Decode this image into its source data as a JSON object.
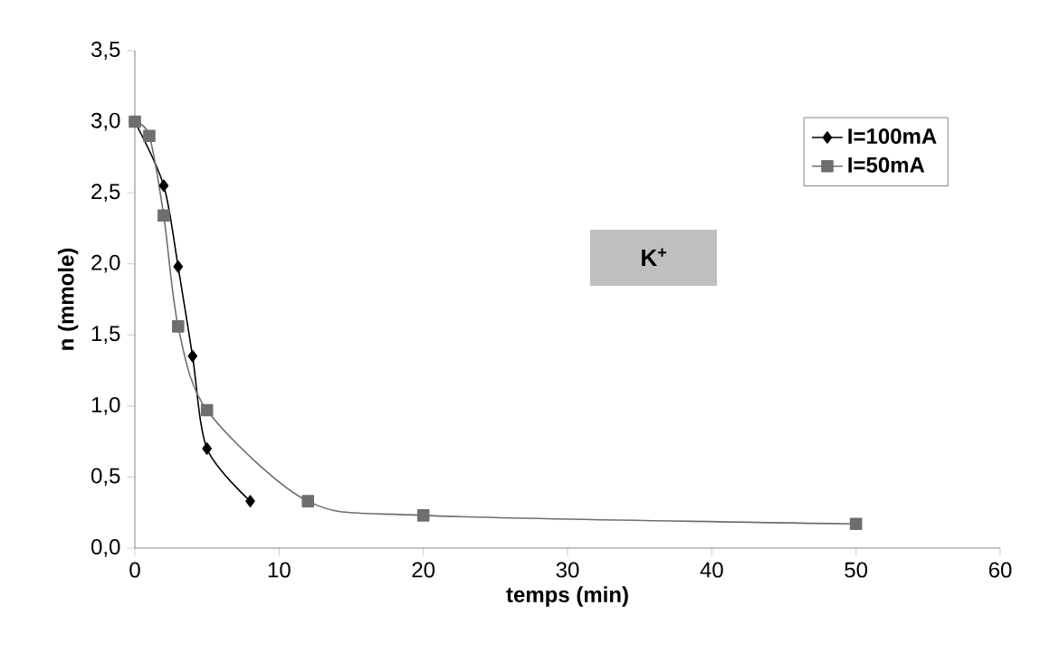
{
  "chart_data": {
    "type": "line",
    "xlabel": "temps (min)",
    "ylabel": "n (mmole)",
    "xlim": [
      0,
      60
    ],
    "xticks": [
      0,
      10,
      20,
      30,
      40,
      50,
      60
    ],
    "ylim": [
      0,
      3.5
    ],
    "yticks": [
      {
        "value": 0,
        "label": "0,0"
      },
      {
        "value": 0.5,
        "label": "0,5"
      },
      {
        "value": 1,
        "label": "1,0"
      },
      {
        "value": 1.5,
        "label": "1,5"
      },
      {
        "value": 2,
        "label": "2,0"
      },
      {
        "value": 2.5,
        "label": "2,5"
      },
      {
        "value": 3,
        "label": "3,0"
      },
      {
        "value": 3.5,
        "label": "3,5"
      }
    ],
    "series": [
      {
        "name": "I=100mA",
        "color": "#000000",
        "marker": "diamond",
        "x": [
          0,
          1,
          2,
          3,
          4,
          5,
          8
        ],
        "values": [
          3.0,
          null,
          2.55,
          1.98,
          1.35,
          0.7,
          0.33
        ]
      },
      {
        "name": "I=50mA",
        "color": "#6e6e6e",
        "marker": "square",
        "x": [
          0,
          1,
          2,
          3,
          5,
          12,
          20,
          50
        ],
        "values": [
          3.0,
          2.9,
          2.34,
          1.56,
          0.97,
          0.33,
          0.23,
          0.17
        ]
      }
    ],
    "legend": "top right",
    "grid": false,
    "line_style": "solid",
    "annotations": [
      "K$^{+}$"
    ]
  }
}
